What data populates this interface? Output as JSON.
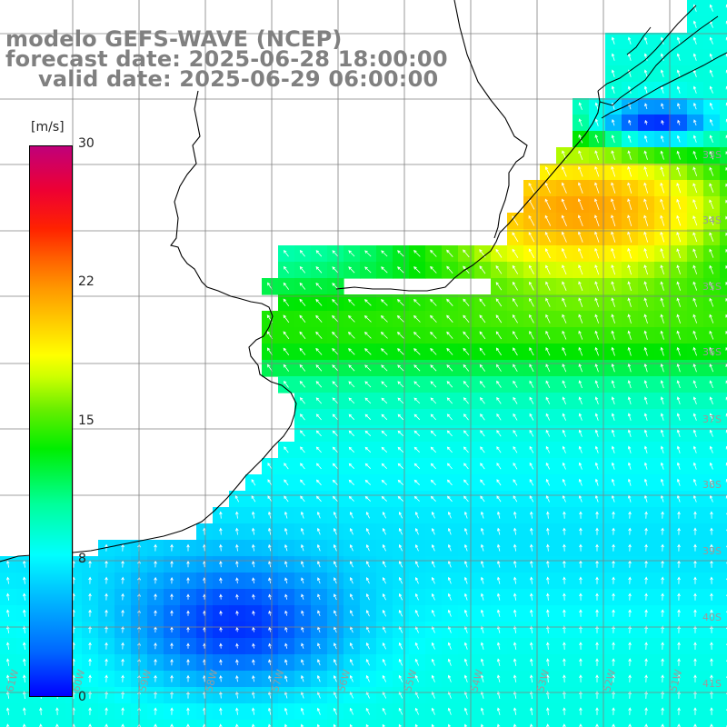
{
  "title": {
    "line1": "modelo GEFS-WAVE (NCEP)",
    "line2": "forecast date: 2025-06-28 18:00:00",
    "line3": "valid date: 2025-06-29 06:00:00"
  },
  "colorbar": {
    "unit": "[m/s]",
    "ticks": [
      "30",
      "22",
      "15",
      "8",
      "0"
    ],
    "range": [
      0,
      30
    ],
    "colors": [
      "#0000ff",
      "#00ffff",
      "#00ee00",
      "#ffff00",
      "#ff9900",
      "#ff0000",
      "#c0007a"
    ]
  },
  "grid": {
    "lat_labels": [
      "33S",
      "34S",
      "35S",
      "36S",
      "37S",
      "38S",
      "39S",
      "40S",
      "41S"
    ],
    "lon_labels": [
      "61W",
      "60W",
      "59W",
      "58W",
      "57W",
      "56W",
      "55W",
      "54W",
      "53W",
      "52W",
      "51W"
    ]
  },
  "colors": {
    "grid": "#808080",
    "coast": "#000000",
    "arrows": "#ffffff",
    "text": "#808080"
  }
}
